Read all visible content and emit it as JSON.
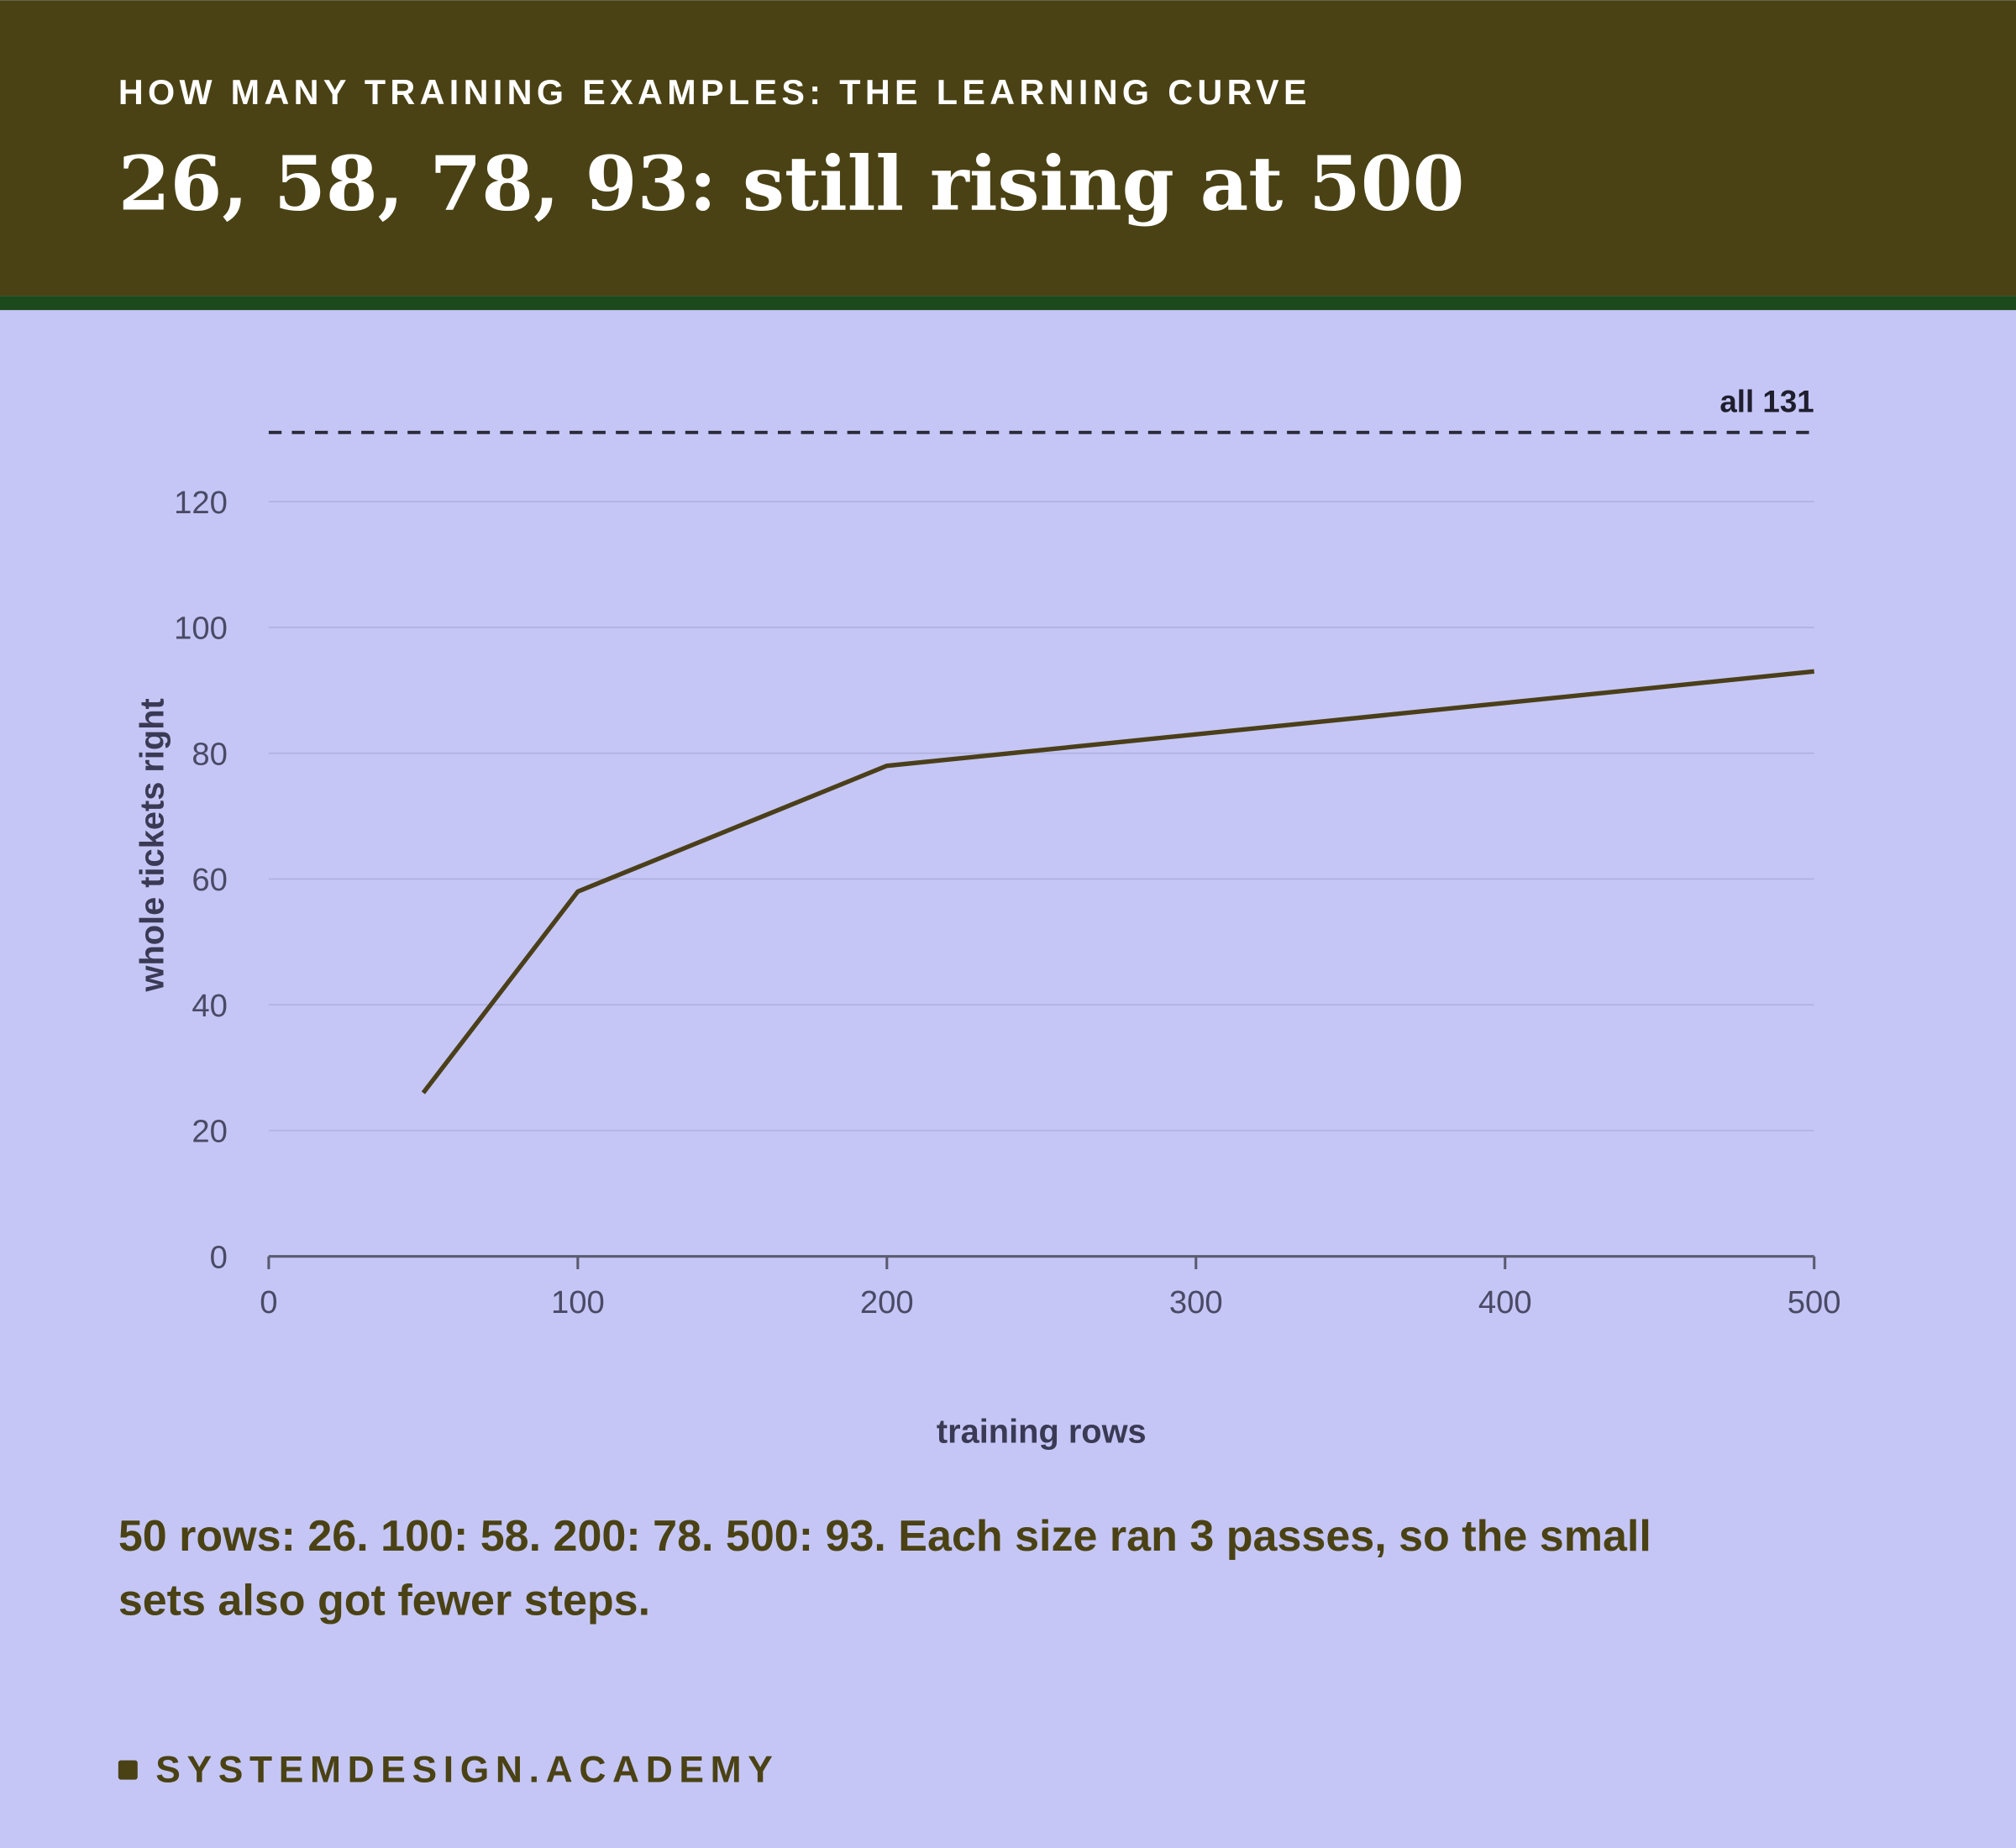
{
  "chart_data": {
    "type": "line",
    "kicker": "HOW MANY TRAINING EXAMPLES: THE LEARNING CURVE",
    "title": "26, 58, 78, 93: still rising at 500",
    "x": [
      50,
      100,
      200,
      500
    ],
    "series": [
      {
        "name": "whole tickets right",
        "color": "#4a3f1a",
        "values": [
          26,
          58,
          78,
          93
        ]
      }
    ],
    "xlim": [
      0,
      500
    ],
    "xticks": [
      0,
      100,
      200,
      300,
      400,
      500
    ],
    "ylim": [
      0,
      120
    ],
    "yticks": [
      0,
      20,
      40,
      60,
      80,
      100,
      120
    ],
    "grid": true,
    "xlabel": "training rows",
    "ylabel": "whole tickets right",
    "reference_line": {
      "value": 131,
      "label": "all 131"
    },
    "caption": [
      "50 rows: 26. 100: 58. 200: 78. 500: 93. Each size ran 3 passes, so the small",
      "sets also got fewer steps."
    ],
    "footer": "SYSTEMDESIGN.ACADEMY"
  }
}
